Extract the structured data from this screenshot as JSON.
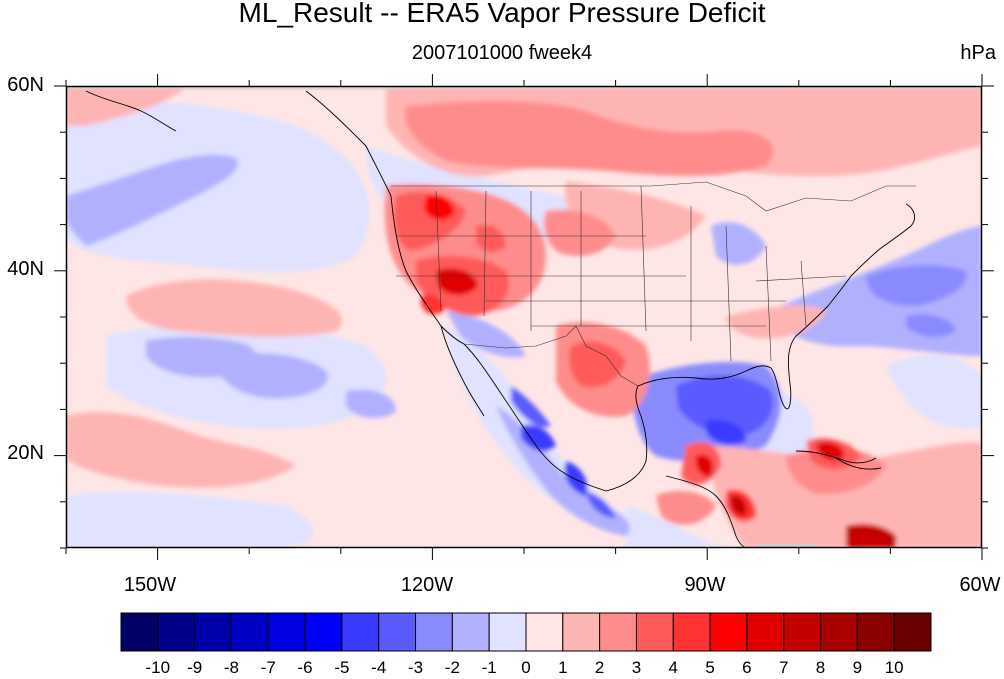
{
  "title": "ML_Result -- ERA5 Vapor Pressure Deficit",
  "subtitle": "2007101000 fweek4",
  "units": "hPa",
  "map": {
    "projection": "cylindrical-equidistant",
    "lon_range": [
      -160,
      -60
    ],
    "lat_range": [
      10,
      60
    ],
    "lat_ticks": [
      {
        "value": 60,
        "label": "60N"
      },
      {
        "value": 40,
        "label": "40N"
      },
      {
        "value": 20,
        "label": "20N"
      }
    ],
    "lon_ticks": [
      {
        "value": -150,
        "label": "150W"
      },
      {
        "value": -120,
        "label": "120W"
      },
      {
        "value": -90,
        "label": "90W"
      },
      {
        "value": -60,
        "label": "60W"
      }
    ]
  },
  "colorbar": {
    "levels": [
      "-10",
      "-9",
      "-8",
      "-7",
      "-6",
      "-5",
      "-4",
      "-3",
      "-2",
      "-1",
      "0",
      "1",
      "2",
      "3",
      "4",
      "5",
      "6",
      "7",
      "8",
      "9",
      "10"
    ],
    "colors": [
      "#000066",
      "#00008b",
      "#0000a8",
      "#0000c4",
      "#0000e0",
      "#0000ff",
      "#3a3aff",
      "#5a5aff",
      "#8a8aff",
      "#b0b0ff",
      "#e0e2ff",
      "#ffe6e6",
      "#ffb4b4",
      "#ff8c8c",
      "#ff5a5a",
      "#ff3333",
      "#ff0000",
      "#e00000",
      "#c40000",
      "#a80000",
      "#8b0000",
      "#6b0000"
    ]
  }
}
